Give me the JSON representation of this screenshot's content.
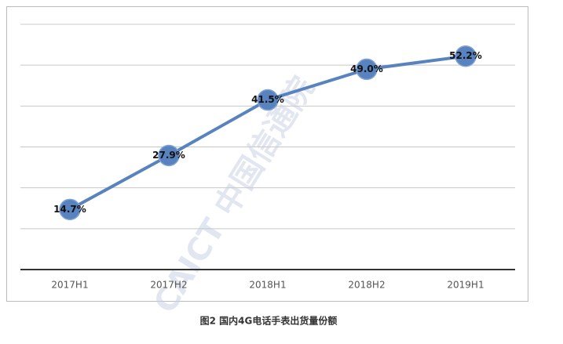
{
  "chart_data": {
    "type": "line",
    "categories": [
      "2017H1",
      "2017H2",
      "2018H1",
      "2018H2",
      "2019H1"
    ],
    "series": [
      {
        "color": "#5883bf",
        "values": [
          14.7,
          27.9,
          41.5,
          49.0,
          52.2
        ],
        "value_labels": [
          "14.7%",
          "27.9%",
          "41.5%",
          "49.0%",
          "52.2%"
        ]
      }
    ],
    "ylim": [
      0,
      60
    ],
    "yticks": [
      0,
      10,
      20,
      30,
      40,
      50,
      60
    ],
    "grid": true,
    "caption": "图2  国内4G电话手表出货量份额",
    "watermark": "CAICT 中国信通院"
  }
}
